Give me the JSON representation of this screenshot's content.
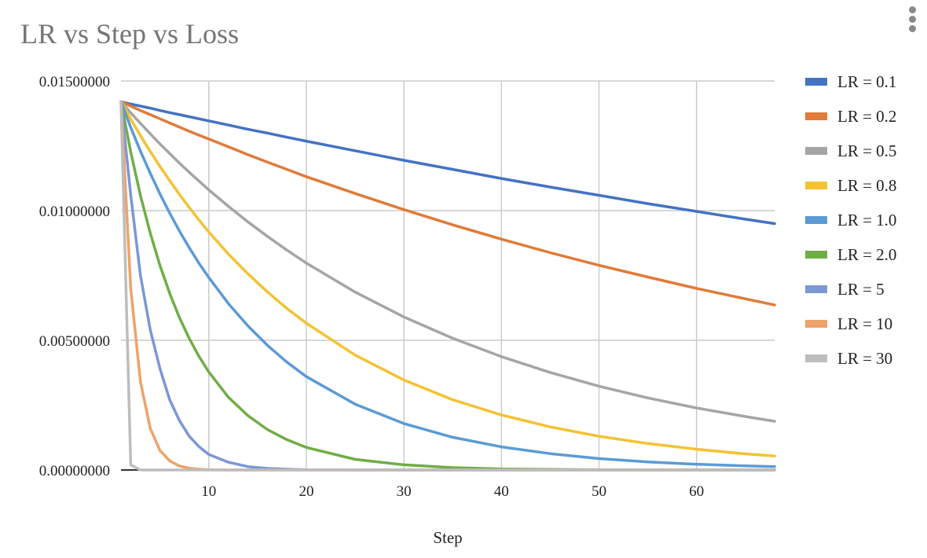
{
  "chart_data": {
    "type": "line",
    "title": "LR vs Step vs Loss",
    "xlabel": "Step",
    "ylabel": "",
    "xlim": [
      1,
      68
    ],
    "ylim": [
      0,
      0.015
    ],
    "x_ticks": [
      "10",
      "20",
      "30",
      "40",
      "50",
      "60"
    ],
    "y_ticks": [
      "0.00000000",
      "0.00500000",
      "0.01000000",
      "0.01500000"
    ],
    "grid": true,
    "legend_position": "right",
    "x": [
      1,
      2,
      3,
      4,
      5,
      6,
      7,
      8,
      9,
      10,
      12,
      14,
      16,
      18,
      20,
      25,
      30,
      35,
      40,
      45,
      50,
      55,
      60,
      65,
      68
    ],
    "series": [
      {
        "name": "LR = 0.1",
        "color": "#4472C4",
        "values": [
          0.0142,
          0.01411,
          0.01403,
          0.01395,
          0.01386,
          0.01378,
          0.0137,
          0.01362,
          0.01354,
          0.01346,
          0.0133,
          0.01314,
          0.01299,
          0.01283,
          0.01268,
          0.01231,
          0.01194,
          0.01159,
          0.01124,
          0.01091,
          0.01059,
          0.01027,
          0.00997,
          0.00967,
          0.0095
        ]
      },
      {
        "name": "LR = 0.2",
        "color": "#E07B39",
        "values": [
          0.0142,
          0.01403,
          0.01386,
          0.0137,
          0.01354,
          0.01338,
          0.01322,
          0.01306,
          0.01291,
          0.01276,
          0.01246,
          0.01216,
          0.01187,
          0.01159,
          0.01131,
          0.01066,
          0.01004,
          0.00945,
          0.0089,
          0.00838,
          0.00789,
          0.00744,
          0.007,
          0.0066,
          0.00636
        ]
      },
      {
        "name": "LR = 0.5",
        "color": "#A5A5A5",
        "values": [
          0.0142,
          0.01377,
          0.01336,
          0.01296,
          0.01257,
          0.0122,
          0.01183,
          0.01148,
          0.01114,
          0.0108,
          0.01017,
          0.00957,
          0.00901,
          0.00848,
          0.00798,
          0.00686,
          0.0059,
          0.00508,
          0.00437,
          0.00376,
          0.00323,
          0.00278,
          0.00239,
          0.00206,
          0.00188
        ]
      },
      {
        "name": "LR = 0.8",
        "color": "#F4C232",
        "values": [
          0.0142,
          0.01353,
          0.01289,
          0.01228,
          0.0117,
          0.01115,
          0.01062,
          0.01012,
          0.00964,
          0.00918,
          0.00833,
          0.00757,
          0.00687,
          0.00623,
          0.00566,
          0.00443,
          0.00347,
          0.00271,
          0.00212,
          0.00166,
          0.0013,
          0.00102,
          0.0008,
          0.00062,
          0.00054
        ]
      },
      {
        "name": "LR = 1.0",
        "color": "#5B9BD5",
        "values": [
          0.0142,
          0.01321,
          0.01229,
          0.01144,
          0.01064,
          0.0099,
          0.00921,
          0.00857,
          0.00797,
          0.00742,
          0.00642,
          0.00556,
          0.00481,
          0.00416,
          0.0036,
          0.00254,
          0.00179,
          0.00126,
          0.00089,
          0.00063,
          0.00044,
          0.00031,
          0.00022,
          0.00016,
          0.00013
        ]
      },
      {
        "name": "LR = 2.0",
        "color": "#70AD47",
        "values": [
          0.0142,
          0.01226,
          0.01058,
          0.00913,
          0.00788,
          0.0068,
          0.00587,
          0.00507,
          0.00438,
          0.00378,
          0.00281,
          0.0021,
          0.00156,
          0.00117,
          0.00087,
          0.00041,
          0.0002,
          9e-05,
          4e-05,
          2e-05,
          1e-05,
          0.0,
          0.0,
          0.0,
          0.0
        ]
      },
      {
        "name": "LR = 5",
        "color": "#7B97D6",
        "values": [
          0.0142,
          0.0106,
          0.0075,
          0.0054,
          0.0039,
          0.0027,
          0.0019,
          0.0013,
          0.0009,
          0.0006,
          0.0003,
          0.00013,
          6e-05,
          3e-05,
          1e-05,
          0.0,
          0.0,
          0.0,
          0.0,
          0.0,
          0.0,
          0.0,
          0.0,
          0.0,
          0.0
        ]
      },
      {
        "name": "LR = 10",
        "color": "#EFA26A",
        "values": [
          0.0142,
          0.007,
          0.0034,
          0.0016,
          0.00075,
          0.00035,
          0.00015,
          7e-05,
          3e-05,
          1e-05,
          0.0,
          0.0,
          0.0,
          0.0,
          0.0,
          0.0,
          0.0,
          0.0,
          0.0,
          0.0,
          0.0,
          0.0,
          0.0,
          0.0,
          0.0
        ]
      },
      {
        "name": "LR = 30",
        "color": "#BDBDBD",
        "values": [
          0.0142,
          0.0002,
          0.0,
          0.0,
          0.0,
          0.0,
          0.0,
          0.0,
          0.0,
          0.0,
          0.0,
          0.0,
          0.0,
          0.0,
          0.0,
          0.0,
          0.0,
          0.0,
          0.0,
          0.0,
          0.0,
          0.0,
          0.0,
          0.0,
          0.0
        ]
      }
    ]
  },
  "menu": {
    "icon": "more-vert-icon"
  }
}
